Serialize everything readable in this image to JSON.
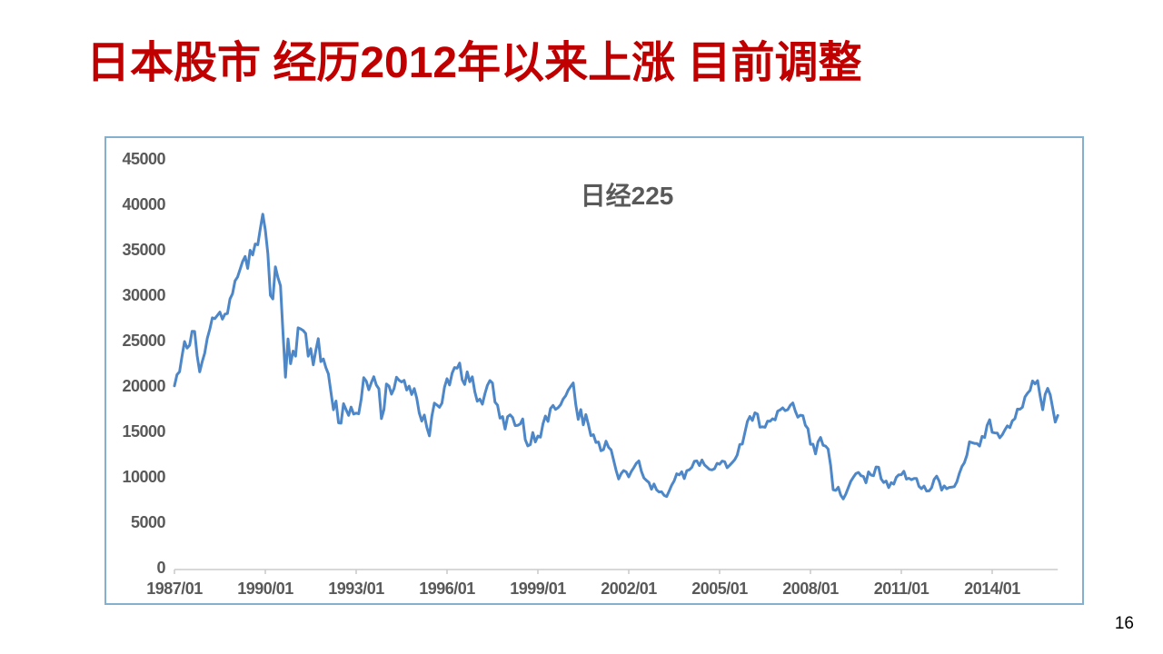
{
  "page": {
    "background": "#FFFFFF",
    "page_number": "16"
  },
  "title": {
    "text": "日本股市 经历2012年以来上涨 目前调整",
    "color": "#C00000"
  },
  "chart": {
    "title": "日经225",
    "title_color": "#595959",
    "axis_text_color": "#595959",
    "axis_line_color": "#CCCCCC",
    "border_color": "#85AFCF",
    "line_color": "#4D87C8",
    "y_ticks": [
      "45000",
      "40000",
      "35000",
      "30000",
      "25000",
      "20000",
      "15000",
      "10000",
      "5000",
      "0"
    ],
    "x_ticks": [
      "1987/01",
      "1990/01",
      "1993/01",
      "1996/01",
      "1999/01",
      "2002/01",
      "2005/01",
      "2008/01",
      "2011/01",
      "2014/01"
    ]
  },
  "chart_data": {
    "type": "line",
    "title": "日经225",
    "series_name": "日经225",
    "x_start": "1987/01",
    "x_end": "2016/03",
    "x_interval": "monthly",
    "ylim": [
      0,
      45000
    ],
    "y_tick_step": 5000,
    "x_tick_labels": [
      "1987/01",
      "1990/01",
      "1993/01",
      "1996/01",
      "1999/01",
      "2002/01",
      "2005/01",
      "2008/01",
      "2011/01",
      "2014/01"
    ],
    "grid": false,
    "legend": "none",
    "values": [
      20020,
      21246,
      21567,
      23275,
      24902,
      24176,
      24488,
      26029,
      26011,
      23329,
      21564,
      22697,
      23622,
      25243,
      26260,
      27509,
      27417,
      27769,
      28137,
      27366,
      27924,
      27983,
      29579,
      30159,
      31581,
      31986,
      32839,
      33713,
      34267,
      32949,
      34954,
      34431,
      35637,
      35549,
      37269,
      38916,
      37189,
      34592,
      29980,
      29585,
      33131,
      31940,
      31036,
      25978,
      20984,
      25194,
      22455,
      23849,
      23293,
      26409,
      26292,
      26111,
      25790,
      23291,
      24121,
      22336,
      23916,
      25222,
      22687,
      22984,
      22023,
      21339,
      19346,
      17391,
      18348,
      15952,
      15910,
      18061,
      17399,
      16767,
      17684,
      16925,
      17024,
      16953,
      18591,
      20919,
      20552,
      19590,
      20380,
      21027,
      20105,
      19703,
      16406,
      17417,
      20229,
      19997,
      19112,
      19725,
      20974,
      20643,
      20449,
      20629,
      19564,
      19990,
      19070,
      19723,
      18650,
      17053,
      16140,
      16806,
      15437,
      14517,
      16677,
      18117,
      17913,
      17655,
      18109,
      19868,
      20813,
      20125,
      21407,
      22041,
      21956,
      22531,
      20693,
      20167,
      21556,
      20467,
      21021,
      19361,
      18330,
      18557,
      18003,
      19151,
      20069,
      20605,
      20331,
      18229,
      17888,
      16459,
      16636,
      15259,
      16628,
      16832,
      16527,
      15641,
      15671,
      15830,
      16379,
      14108,
      13406,
      13565,
      14884,
      13842,
      14499,
      14368,
      15837,
      16702,
      16112,
      17530,
      17861,
      17430,
      17605,
      17942,
      18558,
      18934,
      19540,
      19959,
      20337,
      17974,
      16332,
      17411,
      15727,
      16861,
      15747,
      14540,
      14649,
      13786,
      13844,
      12884,
      12999,
      13934,
      13262,
      12969,
      11861,
      10714,
      9775,
      10366,
      10697,
      10543,
      9998,
      10588,
      11025,
      11493,
      11764,
      10622,
      9878,
      9619,
      9383,
      8640,
      9216,
      8579,
      8339,
      8363,
      7973,
      7831,
      8425,
      9083,
      9563,
      10343,
      10219,
      10559,
      9806,
      10677,
      10784,
      11041,
      11715,
      11762,
      11236,
      11859,
      11326,
      11082,
      10824,
      10772,
      10900,
      11489,
      11388,
      11741,
      11669,
      11009,
      11277,
      11584,
      11900,
      12414,
      13574,
      13607,
      14872,
      16111,
      16649,
      16205,
      17060,
      16906,
      15467,
      15505,
      15457,
      16141,
      16128,
      16399,
      16274,
      17226,
      17383,
      17604,
      17288,
      17400,
      17876,
      18138,
      17249,
      16569,
      16786,
      16738,
      15681,
      15308,
      13592,
      13603,
      12526,
      13850,
      14339,
      13481,
      13377,
      13073,
      11260,
      8577,
      8512,
      8860,
      7994,
      7568,
      8110,
      8828,
      9523,
      9958,
      10357,
      10493,
      10133,
      10035,
      9346,
      10546,
      10198,
      10126,
      11090,
      11057,
      9769,
      9383,
      9537,
      8824,
      9369,
      9202,
      9937,
      10229,
      10238,
      10624,
      9755,
      9850,
      9694,
      9816,
      9833,
      8955,
      8700,
      8988,
      8435,
      8455,
      8803,
      9723,
      10084,
      9521,
      8543,
      9007,
      8695,
      8840,
      8870,
      8928,
      9446,
      10395,
      11139,
      11559,
      12398,
      13861,
      13775,
      13677,
      13668,
      13389,
      14456,
      14328,
      15662,
      16291,
      14915,
      14841,
      14828,
      14304,
      14632,
      15162,
      15621,
      15425,
      16174,
      16414,
      17460,
      17451,
      17674,
      18798,
      19207,
      19520,
      20563,
      20236,
      20585,
      18890,
      17388,
      19083,
      19747,
      19034,
      17518,
      16027,
      16759
    ]
  }
}
